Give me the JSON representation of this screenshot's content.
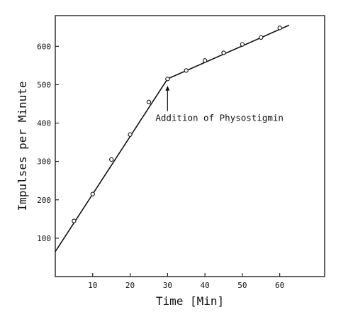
{
  "chart_data": {
    "type": "line",
    "title": "",
    "xlabel": "Time [Min]",
    "ylabel": "Impulses per Minute",
    "xlim": [
      0,
      72
    ],
    "ylim": [
      0,
      680
    ],
    "x_ticks": [
      10,
      20,
      30,
      40,
      50,
      60
    ],
    "y_ticks": [
      100,
      200,
      300,
      400,
      500,
      600
    ],
    "grid": false,
    "legend": "none",
    "series": [
      {
        "points": [
          {
            "x": 5,
            "y": 145
          },
          {
            "x": 10,
            "y": 215
          },
          {
            "x": 15,
            "y": 305
          },
          {
            "x": 20,
            "y": 370
          },
          {
            "x": 25,
            "y": 455
          },
          {
            "x": 30,
            "y": 515
          },
          {
            "x": 35,
            "y": 537
          },
          {
            "x": 40,
            "y": 563
          },
          {
            "x": 45,
            "y": 583
          },
          {
            "x": 50,
            "y": 605
          },
          {
            "x": 55,
            "y": 623
          },
          {
            "x": 60,
            "y": 648
          }
        ],
        "fit_lines": [
          {
            "x": [
              0,
              30
            ],
            "y": [
              65,
              515
            ]
          },
          {
            "x": [
              30,
              62.5
            ],
            "y": [
              515,
              655
            ]
          }
        ]
      }
    ],
    "annotations": [
      {
        "text": "Addition of Physostigmin",
        "x": 30,
        "y": 505,
        "arrow": "up"
      }
    ],
    "colors": {
      "ink": "#111111",
      "background": "#ffffff"
    }
  }
}
